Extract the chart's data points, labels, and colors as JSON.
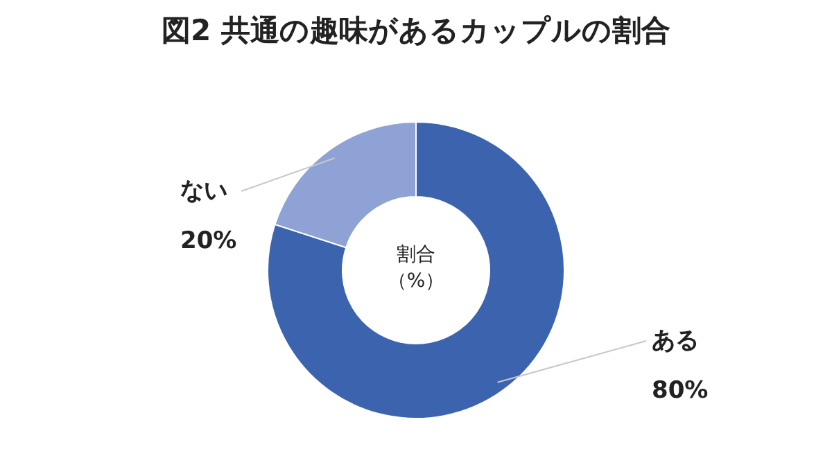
{
  "chart_data": {
    "type": "donut",
    "title": "図2 共通の趣味があるカップルの割合",
    "categories": [
      "ある",
      "ない"
    ],
    "values": [
      80,
      20
    ],
    "value_labels": [
      "80%",
      "20%"
    ],
    "colors": [
      "#3c64ae",
      "#8fa2d6"
    ],
    "annotations": [
      "割合（%）"
    ]
  }
}
